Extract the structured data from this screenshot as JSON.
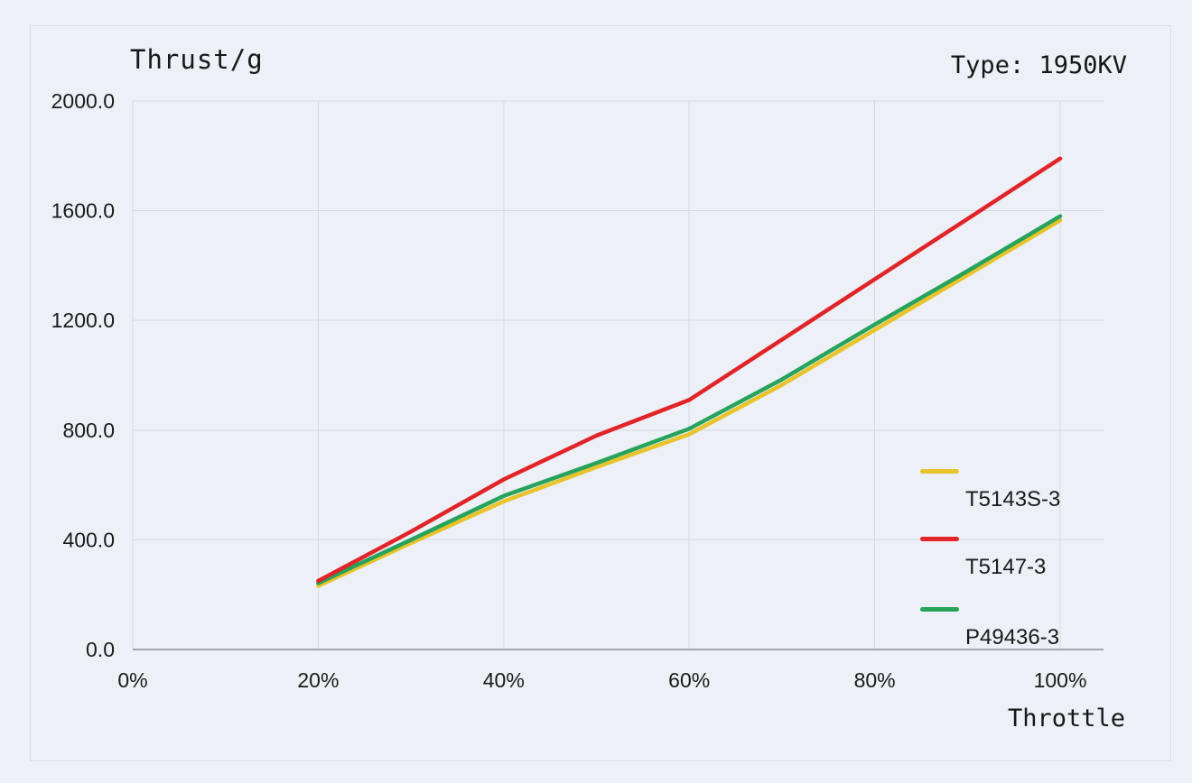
{
  "header": {
    "title": "Thrust/g",
    "type_label": "Type: 1950KV"
  },
  "colors": {
    "background": "#edf0f6",
    "panel_border": "#d9dde5",
    "grid": "#d6dae0",
    "axis": "#a2a6ae",
    "text": "#1a1a1a"
  },
  "chart_data": {
    "type": "line",
    "title": "Thrust/g",
    "xlabel": "Throttle",
    "ylabel": "Thrust/g",
    "subtitle": "Type: 1950KV",
    "x": [
      20,
      30,
      40,
      50,
      60,
      70,
      80,
      90,
      100
    ],
    "series": [
      {
        "name": "T5143S-3",
        "color": "#e8c32b",
        "values": [
          232,
          388,
          540,
          665,
          785,
          965,
          1165,
          1365,
          1565
        ]
      },
      {
        "name": "T5147-3",
        "color": "#e02428",
        "values": [
          250,
          430,
          620,
          780,
          910,
          1130,
          1350,
          1570,
          1790
        ]
      },
      {
        "name": "P49436-3",
        "color": "#27a35c",
        "values": [
          242,
          400,
          560,
          680,
          805,
          985,
          1185,
          1380,
          1580
        ]
      }
    ],
    "x_tick_values": [
      0,
      20,
      40,
      60,
      80,
      100
    ],
    "x_tick_labels": [
      "0%",
      "20%",
      "40%",
      "60%",
      "80%",
      "100%"
    ],
    "y_tick_values": [
      0,
      400,
      800,
      1200,
      1600,
      2000
    ],
    "y_tick_labels": [
      "0.0",
      "400.0",
      "800.0",
      "1200.0",
      "1600.0",
      "2000.0"
    ],
    "xlim": [
      0,
      100
    ],
    "ylim": [
      0,
      2000
    ],
    "grid": true,
    "legend_position": "lower-right"
  }
}
